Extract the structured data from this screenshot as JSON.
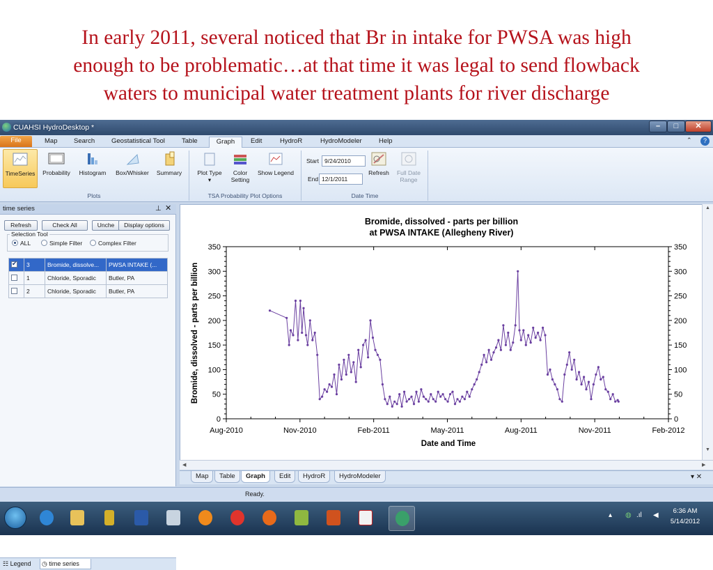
{
  "slide": {
    "headline_lines": [
      "In early 2011, several noticed that Br in intake for PWSA was high",
      "enough to be problematic…at that time it was legal to send flowback",
      "waters to municipal water treatment plants for river discharge"
    ]
  },
  "window": {
    "title": "CUAHSI HydroDesktop *"
  },
  "menu": {
    "items": [
      "File",
      "Map",
      "Search",
      "Geostatistical Tool",
      "Table",
      "Graph",
      "Edit",
      "HydroR",
      "HydroModeler",
      "Help"
    ],
    "active": "Graph"
  },
  "ribbon": {
    "plots": {
      "label": "Plots",
      "buttons": [
        "TimeSeries",
        "Probability",
        "Histogram",
        "Box/Whisker",
        "Summary"
      ]
    },
    "tsa_options": {
      "label": "TSA  Probability Plot Options",
      "plot_type": "Plot Type",
      "color_setting_1": "Color",
      "color_setting_2": "Setting",
      "show_legend": "Show Legend"
    },
    "date_time": {
      "label": "Date  Time",
      "start_label": "Start",
      "start_value": "9/24/2010",
      "end_label": "End",
      "end_value": "12/1/2011",
      "refresh": "Refresh",
      "full_range_1": "Full Date",
      "full_range_2": "Range"
    }
  },
  "series_panel": {
    "title": "time series",
    "buttons": {
      "refresh": "Refresh",
      "check_all": "Check All",
      "uncheck": "Unche",
      "display_options": "Display options"
    },
    "selection_tool": {
      "label": "Selection Tool",
      "options": [
        "ALL",
        "Simple Filter",
        "Complex Filter"
      ],
      "selected": "ALL"
    },
    "rows": [
      {
        "checked": true,
        "id": "3",
        "variable": "Bromide, dissolve...",
        "site": "PWSA INTAKE (..."
      },
      {
        "checked": false,
        "id": "1",
        "variable": "Chloride, Sporadic",
        "site": "Butler, PA"
      },
      {
        "checked": false,
        "id": "2",
        "variable": "Chloride, Sporadic",
        "site": "Butler, PA"
      }
    ],
    "bottom_tabs": [
      "Legend",
      "time series"
    ]
  },
  "graph_tabs": [
    "Map",
    "Table",
    "Graph",
    "Edit",
    "HydroR",
    "HydroModeler"
  ],
  "status": {
    "text": "Ready."
  },
  "taskbar": {
    "time": "6:36 AM",
    "date": "5/14/2012"
  },
  "chart_data": {
    "type": "line",
    "title": "Bromide, dissolved - parts per billion",
    "subtitle": "at PWSA INTAKE (Allegheny River)",
    "xlabel": "Date and Time",
    "ylabel": "Bromide, dissolved - parts per billion",
    "x_tick_labels": [
      "Aug-2010",
      "Nov-2010",
      "Feb-2011",
      "May-2011",
      "Aug-2011",
      "Nov-2011",
      "Feb-2012"
    ],
    "y_tick_labels": [
      "0",
      "50",
      "100",
      "150",
      "200",
      "250",
      "300",
      "350"
    ],
    "xlim": [
      "2010-08-01",
      "2012-02-01"
    ],
    "ylim": [
      0,
      350
    ],
    "series_color": "#6a3fa0",
    "grid": false,
    "series": [
      {
        "x": [
          "2010-09-24",
          "2010-10-15",
          "2010-10-18",
          "2010-10-20",
          "2010-10-23",
          "2010-10-26",
          "2010-10-29",
          "2010-11-01",
          "2010-11-03",
          "2010-11-05",
          "2010-11-08",
          "2010-11-10",
          "2010-11-13",
          "2010-11-16",
          "2010-11-19",
          "2010-11-22",
          "2010-11-25",
          "2010-11-28",
          "2010-12-01",
          "2010-12-04",
          "2010-12-07",
          "2010-12-10",
          "2010-12-13",
          "2010-12-16",
          "2010-12-19",
          "2010-12-22",
          "2010-12-25",
          "2010-12-28",
          "2010-12-31",
          "2011-01-03",
          "2011-01-06",
          "2011-01-09",
          "2011-01-12",
          "2011-01-15",
          "2011-01-18",
          "2011-01-21",
          "2011-01-24",
          "2011-01-27",
          "2011-01-30",
          "2011-02-02",
          "2011-02-05",
          "2011-02-08",
          "2011-02-11",
          "2011-02-14",
          "2011-02-17",
          "2011-02-20",
          "2011-02-23",
          "2011-02-26",
          "2011-03-01",
          "2011-03-04",
          "2011-03-07",
          "2011-03-10",
          "2011-03-13",
          "2011-03-16",
          "2011-03-19",
          "2011-03-22",
          "2011-03-25",
          "2011-03-28",
          "2011-03-31",
          "2011-04-03",
          "2011-04-06",
          "2011-04-09",
          "2011-04-12",
          "2011-04-15",
          "2011-04-18",
          "2011-04-21",
          "2011-04-24",
          "2011-04-27",
          "2011-04-30",
          "2011-05-03",
          "2011-05-06",
          "2011-05-09",
          "2011-05-12",
          "2011-05-15",
          "2011-05-18",
          "2011-05-21",
          "2011-05-24",
          "2011-05-27",
          "2011-05-30",
          "2011-06-02",
          "2011-06-05",
          "2011-06-08",
          "2011-06-11",
          "2011-06-14",
          "2011-06-17",
          "2011-06-20",
          "2011-06-23",
          "2011-06-26",
          "2011-06-29",
          "2011-07-02",
          "2011-07-05",
          "2011-07-08",
          "2011-07-11",
          "2011-07-14",
          "2011-07-17",
          "2011-07-20",
          "2011-07-23",
          "2011-07-26",
          "2011-07-29",
          "2011-07-31",
          "2011-08-02",
          "2011-08-05",
          "2011-08-08",
          "2011-08-11",
          "2011-08-14",
          "2011-08-17",
          "2011-08-20",
          "2011-08-23",
          "2011-08-26",
          "2011-08-29",
          "2011-09-01",
          "2011-09-04",
          "2011-09-07",
          "2011-09-10",
          "2011-09-13",
          "2011-09-16",
          "2011-09-19",
          "2011-09-22",
          "2011-09-25",
          "2011-09-28",
          "2011-10-01",
          "2011-10-04",
          "2011-10-07",
          "2011-10-10",
          "2011-10-13",
          "2011-10-16",
          "2011-10-19",
          "2011-10-22",
          "2011-10-25",
          "2011-10-28",
          "2011-10-31",
          "2011-11-03",
          "2011-11-06",
          "2011-11-09",
          "2011-11-12",
          "2011-11-15",
          "2011-11-18",
          "2011-11-21",
          "2011-11-24",
          "2011-11-27",
          "2011-11-30",
          "2011-12-01"
        ],
        "values": [
          220,
          205,
          150,
          180,
          170,
          240,
          160,
          240,
          175,
          225,
          170,
          150,
          200,
          160,
          175,
          130,
          40,
          45,
          60,
          55,
          70,
          65,
          90,
          50,
          110,
          80,
          120,
          90,
          130,
          95,
          115,
          75,
          140,
          105,
          150,
          160,
          125,
          200,
          165,
          140,
          130,
          120,
          70,
          40,
          30,
          45,
          25,
          35,
          30,
          50,
          25,
          55,
          35,
          40,
          45,
          30,
          55,
          35,
          60,
          45,
          40,
          35,
          50,
          40,
          35,
          55,
          45,
          50,
          40,
          35,
          50,
          55,
          30,
          40,
          35,
          45,
          40,
          55,
          45,
          60,
          70,
          80,
          95,
          110,
          130,
          115,
          140,
          120,
          135,
          145,
          160,
          140,
          190,
          150,
          175,
          140,
          155,
          190,
          300,
          180,
          160,
          180,
          150,
          170,
          155,
          185,
          165,
          175,
          160,
          185,
          170,
          90,
          100,
          80,
          70,
          60,
          40,
          35,
          90,
          110,
          135,
          100,
          120,
          80,
          95,
          70,
          85,
          60,
          75,
          40,
          70,
          90,
          105,
          80,
          85,
          60,
          55,
          40,
          50,
          35,
          38,
          35
        ]
      }
    ]
  }
}
